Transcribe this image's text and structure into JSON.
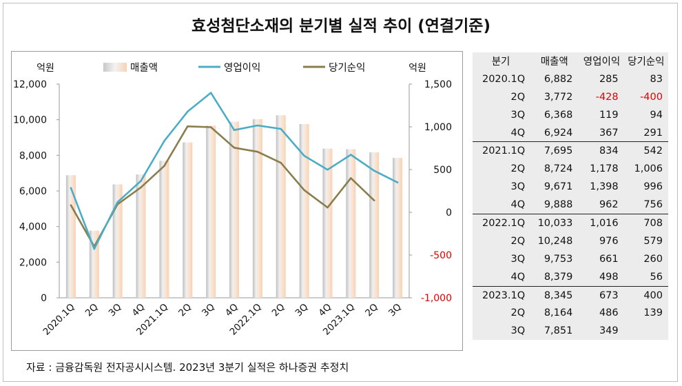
{
  "title": "효성첨단소재의 분기별 실적 추이 (연결기준)",
  "source": "자료 : 금융감독원 전자공시시스템. 2023년 3분기 실적은 하나증권 추정치",
  "colors": {
    "bar_light": "#f0f0f0",
    "bar_peach": "#f7d2b6",
    "op_line": "#4bacc6",
    "net_line": "#8a7d4d",
    "negative": "#e00000"
  },
  "chart_data": {
    "type": "bar+line",
    "categories": [
      "2020.1Q",
      "2Q",
      "3Q",
      "4Q",
      "2021.1Q",
      "2Q",
      "3Q",
      "4Q",
      "2022.1Q",
      "2Q",
      "3Q",
      "4Q",
      "2023.1Q",
      "2Q",
      "3Q"
    ],
    "left_axis": {
      "label": "억원",
      "ylim": [
        0,
        12000
      ],
      "ticks": [
        "0",
        "2,000",
        "4,000",
        "6,000",
        "8,000",
        "10,000",
        "12,000"
      ]
    },
    "right_axis": {
      "label": "억원",
      "ylim": [
        -1000,
        1500
      ],
      "ticks": [
        "-1,000",
        "-500",
        "0",
        "500",
        "1,000",
        "1,500"
      ]
    },
    "legend_position": "top",
    "grid": false,
    "series": [
      {
        "name": "매출액",
        "type": "bar",
        "axis": "left",
        "values": [
          6882,
          3772,
          6368,
          6924,
          7695,
          8724,
          9671,
          9888,
          10033,
          10248,
          9753,
          8379,
          8345,
          8164,
          7851
        ]
      },
      {
        "name": "영업이익",
        "type": "line",
        "axis": "right",
        "values": [
          285,
          -428,
          119,
          367,
          834,
          1178,
          1398,
          962,
          1016,
          976,
          661,
          498,
          673,
          486,
          349
        ]
      },
      {
        "name": "당기순익",
        "type": "line",
        "axis": "right",
        "values": [
          83,
          -400,
          94,
          291,
          542,
          1006,
          996,
          756,
          708,
          579,
          260,
          56,
          400,
          139,
          null
        ]
      }
    ]
  },
  "table": {
    "headers": [
      "분기",
      "매출액",
      "영업이익",
      "당기순익"
    ],
    "rows": [
      {
        "q": "2020.1Q",
        "sales": "6,882",
        "op": "285",
        "net": "83"
      },
      {
        "q": "2Q",
        "sales": "3,772",
        "op": "-428",
        "net": "-400"
      },
      {
        "q": "3Q",
        "sales": "6,368",
        "op": "119",
        "net": "94"
      },
      {
        "q": "4Q",
        "sales": "6,924",
        "op": "367",
        "net": "291"
      },
      {
        "q": "2021.1Q",
        "sales": "7,695",
        "op": "834",
        "net": "542"
      },
      {
        "q": "2Q",
        "sales": "8,724",
        "op": "1,178",
        "net": "1,006"
      },
      {
        "q": "3Q",
        "sales": "9,671",
        "op": "1,398",
        "net": "996"
      },
      {
        "q": "4Q",
        "sales": "9,888",
        "op": "962",
        "net": "756"
      },
      {
        "q": "2022.1Q",
        "sales": "10,033",
        "op": "1,016",
        "net": "708"
      },
      {
        "q": "2Q",
        "sales": "10,248",
        "op": "976",
        "net": "579"
      },
      {
        "q": "3Q",
        "sales": "9,753",
        "op": "661",
        "net": "260"
      },
      {
        "q": "4Q",
        "sales": "8,379",
        "op": "498",
        "net": "56"
      },
      {
        "q": "2023.1Q",
        "sales": "8,345",
        "op": "673",
        "net": "400"
      },
      {
        "q": "2Q",
        "sales": "8,164",
        "op": "486",
        "net": "139"
      },
      {
        "q": "3Q",
        "sales": "7,851",
        "op": "349",
        "net": ""
      }
    ]
  }
}
